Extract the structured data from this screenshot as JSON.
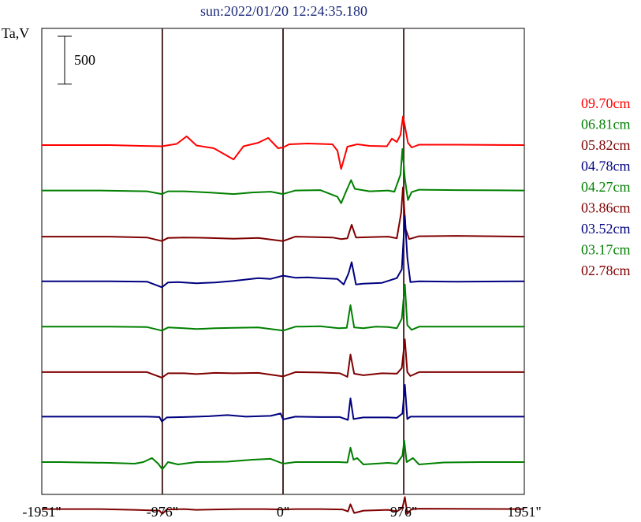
{
  "chart_data": {
    "type": "line",
    "title": "sun:2022/01/20 12:24:35.180",
    "ylabel": "Ta,V",
    "xlabel": "",
    "x_ticks": [
      {
        "value": -1951,
        "label": "-1951\""
      },
      {
        "value": -976,
        "label": "-976\""
      },
      {
        "value": 0,
        "label": "0\""
      },
      {
        "value": 976,
        "label": "976\""
      },
      {
        "value": 1951,
        "label": "1951\""
      }
    ],
    "xlim": [
      -1951,
      1951
    ],
    "vertical_lines": [
      -976,
      0,
      976
    ],
    "scale_bar": {
      "label": "500",
      "value": 500
    },
    "grid": false,
    "legend_position": "right",
    "series": [
      {
        "name": "09.70cm",
        "color": "#ff0000",
        "offset": 4000,
        "points": [
          [
            -1951,
            0
          ],
          [
            -1400,
            0
          ],
          [
            -1150,
            -10
          ],
          [
            -980,
            -15
          ],
          [
            -860,
            15
          ],
          [
            -780,
            110
          ],
          [
            -700,
            -5
          ],
          [
            -560,
            -40
          ],
          [
            -400,
            -180
          ],
          [
            -320,
            -15
          ],
          [
            -200,
            30
          ],
          [
            -120,
            90
          ],
          [
            -40,
            -40
          ],
          [
            0,
            -30
          ],
          [
            50,
            10
          ],
          [
            200,
            20
          ],
          [
            400,
            10
          ],
          [
            440,
            -70
          ],
          [
            470,
            -300
          ],
          [
            520,
            -20
          ],
          [
            600,
            10
          ],
          [
            700,
            -10
          ],
          [
            840,
            -15
          ],
          [
            880,
            80
          ],
          [
            920,
            40
          ],
          [
            950,
            130
          ],
          [
            970,
            360
          ],
          [
            990,
            200
          ],
          [
            1010,
            30
          ],
          [
            1040,
            -30
          ],
          [
            1100,
            5
          ],
          [
            1400,
            5
          ],
          [
            1951,
            0
          ]
        ]
      },
      {
        "name": "06.81cm",
        "color": "#008000",
        "offset": 3430,
        "points": [
          [
            -1951,
            0
          ],
          [
            -1500,
            0
          ],
          [
            -1100,
            -10
          ],
          [
            -980,
            -45
          ],
          [
            -930,
            -10
          ],
          [
            -800,
            -10
          ],
          [
            -600,
            -25
          ],
          [
            -400,
            -45
          ],
          [
            -250,
            -25
          ],
          [
            -100,
            -15
          ],
          [
            0,
            -45
          ],
          [
            100,
            0
          ],
          [
            300,
            5
          ],
          [
            440,
            -80
          ],
          [
            470,
            -160
          ],
          [
            510,
            -10
          ],
          [
            550,
            130
          ],
          [
            580,
            20
          ],
          [
            700,
            -10
          ],
          [
            850,
            0
          ],
          [
            900,
            -15
          ],
          [
            950,
            200
          ],
          [
            965,
            520
          ],
          [
            985,
            150
          ],
          [
            1010,
            -120
          ],
          [
            1040,
            -20
          ],
          [
            1100,
            10
          ],
          [
            1400,
            5
          ],
          [
            1951,
            0
          ]
        ]
      },
      {
        "name": "05.82cm",
        "color": "#800000",
        "offset": 2850,
        "points": [
          [
            -1951,
            0
          ],
          [
            -1400,
            0
          ],
          [
            -1100,
            -10
          ],
          [
            -980,
            -55
          ],
          [
            -930,
            -15
          ],
          [
            -800,
            -10
          ],
          [
            -600,
            -15
          ],
          [
            -400,
            -25
          ],
          [
            -200,
            -15
          ],
          [
            0,
            -55
          ],
          [
            100,
            0
          ],
          [
            400,
            -10
          ],
          [
            470,
            -30
          ],
          [
            520,
            -20
          ],
          [
            555,
            150
          ],
          [
            590,
            -10
          ],
          [
            700,
            -5
          ],
          [
            850,
            0
          ],
          [
            920,
            -20
          ],
          [
            955,
            300
          ],
          [
            970,
            620
          ],
          [
            990,
            100
          ],
          [
            1020,
            -30
          ],
          [
            1100,
            5
          ],
          [
            1400,
            10
          ],
          [
            1951,
            0
          ]
        ]
      },
      {
        "name": "04.78cm",
        "color": "#000080",
        "offset": 2290,
        "points": [
          [
            -1951,
            0
          ],
          [
            -1400,
            0
          ],
          [
            -1100,
            -5
          ],
          [
            -980,
            -75
          ],
          [
            -930,
            -15
          ],
          [
            -850,
            -10
          ],
          [
            -700,
            -25
          ],
          [
            -550,
            -15
          ],
          [
            -400,
            5
          ],
          [
            -200,
            40
          ],
          [
            -100,
            30
          ],
          [
            0,
            70
          ],
          [
            100,
            45
          ],
          [
            200,
            50
          ],
          [
            300,
            40
          ],
          [
            440,
            30
          ],
          [
            490,
            -40
          ],
          [
            530,
            100
          ],
          [
            555,
            240
          ],
          [
            590,
            -40
          ],
          [
            650,
            -30
          ],
          [
            800,
            -20
          ],
          [
            920,
            40
          ],
          [
            960,
            150
          ],
          [
            985,
            820
          ],
          [
            1005,
            300
          ],
          [
            1030,
            -10
          ],
          [
            1100,
            0
          ],
          [
            1400,
            -5
          ],
          [
            1951,
            0
          ]
        ]
      },
      {
        "name": "04.27cm",
        "color": "#008000",
        "offset": 1720,
        "points": [
          [
            -1951,
            0
          ],
          [
            -1400,
            0
          ],
          [
            -1100,
            -5
          ],
          [
            -980,
            -50
          ],
          [
            -930,
            -10
          ],
          [
            -800,
            -20
          ],
          [
            -700,
            -30
          ],
          [
            -550,
            -20
          ],
          [
            -400,
            -15
          ],
          [
            -200,
            -10
          ],
          [
            0,
            -50
          ],
          [
            100,
            0
          ],
          [
            300,
            5
          ],
          [
            450,
            -20
          ],
          [
            515,
            -15
          ],
          [
            545,
            270
          ],
          [
            575,
            -10
          ],
          [
            650,
            -20
          ],
          [
            750,
            0
          ],
          [
            850,
            -5
          ],
          [
            920,
            -20
          ],
          [
            960,
            100
          ],
          [
            985,
            530
          ],
          [
            1005,
            20
          ],
          [
            1040,
            -40
          ],
          [
            1100,
            0
          ],
          [
            1400,
            0
          ],
          [
            1951,
            0
          ]
        ]
      },
      {
        "name": "03.86cm",
        "color": "#800000",
        "offset": 1150,
        "points": [
          [
            -1951,
            0
          ],
          [
            -1400,
            0
          ],
          [
            -1100,
            0
          ],
          [
            -980,
            -70
          ],
          [
            -930,
            -15
          ],
          [
            -800,
            -15
          ],
          [
            -700,
            -25
          ],
          [
            -550,
            -10
          ],
          [
            -400,
            -15
          ],
          [
            -200,
            -10
          ],
          [
            0,
            -55
          ],
          [
            100,
            0
          ],
          [
            300,
            -5
          ],
          [
            460,
            -15
          ],
          [
            520,
            -60
          ],
          [
            545,
            220
          ],
          [
            575,
            -20
          ],
          [
            650,
            -40
          ],
          [
            800,
            -15
          ],
          [
            920,
            -20
          ],
          [
            960,
            50
          ],
          [
            985,
            410
          ],
          [
            1005,
            0
          ],
          [
            1030,
            -50
          ],
          [
            1100,
            0
          ],
          [
            1400,
            0
          ],
          [
            1951,
            0
          ]
        ]
      },
      {
        "name": "03.52cm",
        "color": "#000080",
        "offset": 590,
        "points": [
          [
            -1951,
            0
          ],
          [
            -1400,
            0
          ],
          [
            -1100,
            0
          ],
          [
            -1000,
            -5
          ],
          [
            -980,
            -60
          ],
          [
            -940,
            -10
          ],
          [
            -800,
            -5
          ],
          [
            -600,
            5
          ],
          [
            -450,
            20
          ],
          [
            -300,
            0
          ],
          [
            -100,
            10
          ],
          [
            -20,
            40
          ],
          [
            0,
            -35
          ],
          [
            100,
            0
          ],
          [
            300,
            -5
          ],
          [
            460,
            -5
          ],
          [
            525,
            -40
          ],
          [
            545,
            230
          ],
          [
            570,
            -30
          ],
          [
            650,
            -10
          ],
          [
            850,
            -10
          ],
          [
            920,
            -15
          ],
          [
            965,
            40
          ],
          [
            985,
            400
          ],
          [
            1005,
            -30
          ],
          [
            1030,
            0
          ],
          [
            1100,
            0
          ],
          [
            1951,
            0
          ]
        ]
      },
      {
        "name": "03.17cm",
        "color": "#008000",
        "offset": 20,
        "points": [
          [
            -1951,
            0
          ],
          [
            -1800,
            0
          ],
          [
            -1400,
            -10
          ],
          [
            -1200,
            -20
          ],
          [
            -1130,
            0
          ],
          [
            -1060,
            50
          ],
          [
            -1010,
            -20
          ],
          [
            -976,
            -90
          ],
          [
            -930,
            0
          ],
          [
            -850,
            -30
          ],
          [
            -700,
            0
          ],
          [
            -450,
            5
          ],
          [
            -250,
            30
          ],
          [
            -100,
            40
          ],
          [
            0,
            -20
          ],
          [
            100,
            0
          ],
          [
            300,
            0
          ],
          [
            450,
            0
          ],
          [
            520,
            -5
          ],
          [
            545,
            180
          ],
          [
            570,
            30
          ],
          [
            600,
            50
          ],
          [
            650,
            -30
          ],
          [
            850,
            -10
          ],
          [
            920,
            -20
          ],
          [
            965,
            80
          ],
          [
            980,
            270
          ],
          [
            1000,
            0
          ],
          [
            1050,
            50
          ],
          [
            1100,
            -30
          ],
          [
            1300,
            -5
          ],
          [
            1600,
            0
          ],
          [
            1951,
            0
          ]
        ]
      },
      {
        "name": "02.78cm",
        "color": "#800000",
        "offset": -570,
        "points": [
          [
            -1951,
            0
          ],
          [
            -1500,
            0
          ],
          [
            -1200,
            -10
          ],
          [
            -1000,
            -20
          ],
          [
            -976,
            -60
          ],
          [
            -940,
            -5
          ],
          [
            -800,
            0
          ],
          [
            -700,
            -10
          ],
          [
            -550,
            -5
          ],
          [
            -350,
            0
          ],
          [
            -150,
            0
          ],
          [
            0,
            -5
          ],
          [
            100,
            0
          ],
          [
            300,
            0
          ],
          [
            480,
            -5
          ],
          [
            525,
            -30
          ],
          [
            545,
            60
          ],
          [
            575,
            -50
          ],
          [
            650,
            -20
          ],
          [
            850,
            -10
          ],
          [
            920,
            -30
          ],
          [
            965,
            15
          ],
          [
            985,
            150
          ],
          [
            1005,
            -60
          ],
          [
            1040,
            0
          ],
          [
            1100,
            5
          ],
          [
            1951,
            0
          ]
        ]
      }
    ]
  }
}
